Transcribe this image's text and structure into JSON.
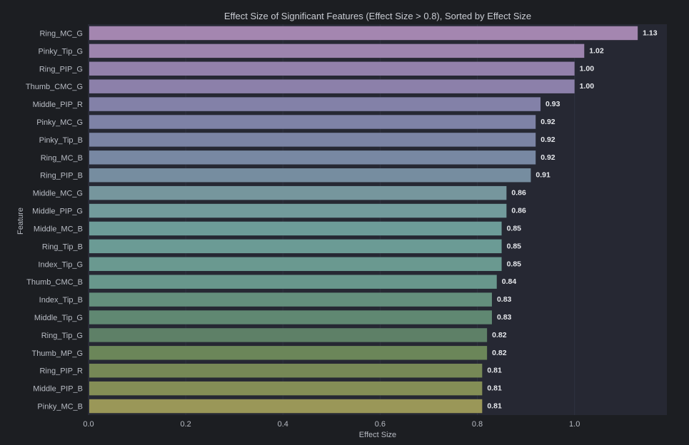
{
  "chart_data": {
    "type": "bar",
    "orientation": "horizontal",
    "title": "Effect Size of Significant Features (Effect Size > 0.8), Sorted by Effect Size",
    "xlabel": "Effect Size",
    "ylabel": "Feature",
    "xlim": [
      0,
      1.19
    ],
    "xticks": [
      "0.0",
      "0.2",
      "0.4",
      "0.6",
      "0.8",
      "1.0"
    ],
    "grid": true,
    "categories": [
      "Ring_MC_G",
      "Pinky_Tip_G",
      "Ring_PIP_G",
      "Thumb_CMC_G",
      "Middle_PIP_R",
      "Pinky_MC_G",
      "Pinky_Tip_B",
      "Ring_MC_B",
      "Ring_PIP_B",
      "Middle_MC_G",
      "Middle_PIP_G",
      "Middle_MC_B",
      "Ring_Tip_B",
      "Index_Tip_G",
      "Thumb_CMC_B",
      "Index_Tip_B",
      "Middle_Tip_G",
      "Ring_Tip_G",
      "Thumb_MP_G",
      "Ring_PIP_R",
      "Middle_PIP_B",
      "Pinky_MC_B"
    ],
    "values": [
      1.13,
      1.02,
      1.0,
      1.0,
      0.93,
      0.92,
      0.92,
      0.92,
      0.91,
      0.86,
      0.86,
      0.85,
      0.85,
      0.85,
      0.84,
      0.83,
      0.83,
      0.82,
      0.82,
      0.81,
      0.81,
      0.81
    ],
    "value_labels": [
      "1.13",
      "1.02",
      "1.00",
      "1.00",
      "0.93",
      "0.92",
      "0.92",
      "0.92",
      "0.91",
      "0.86",
      "0.86",
      "0.85",
      "0.85",
      "0.85",
      "0.84",
      "0.83",
      "0.83",
      "0.82",
      "0.82",
      "0.81",
      "0.81",
      "0.81"
    ],
    "colors": [
      "#a486b0",
      "#9d84ae",
      "#9381ab",
      "#8c80aa",
      "#8381a8",
      "#7e82a6",
      "#7b84a4",
      "#7888a3",
      "#768da0",
      "#76969d",
      "#729b9c",
      "#6d9c99",
      "#6b9b95",
      "#6a9990",
      "#68978c",
      "#648f7d",
      "#608872",
      "#5e8067",
      "#6b8659",
      "#768856",
      "#848e56",
      "#9a9758"
    ],
    "background": "#262833",
    "figure_background": "#1c1e22"
  }
}
